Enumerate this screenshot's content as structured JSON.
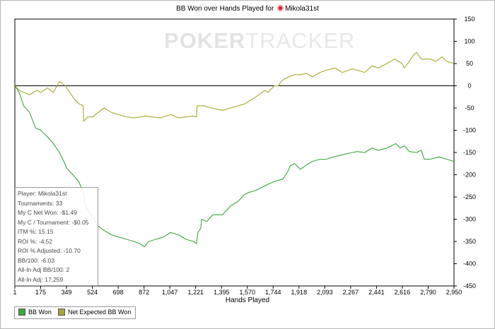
{
  "header": {
    "title_prefix": "BB Won over Hands Played for",
    "player_name": "Mikola31st"
  },
  "watermark": {
    "bold": "POKER",
    "light": "TRACKER"
  },
  "infobox": {
    "lines": [
      "Player: Mikola31st",
      "Tournaments: 33",
      "My C Net Won: -$1.49",
      "My C / Tournament: -$0.05",
      "ITM %: 15.15",
      "ROI %: -4.52",
      "ROI % Adjusted: -10.70",
      "BB/100: -6.03",
      "All-In Adj BB/100: 2",
      "All-In Adj: 17,259"
    ]
  },
  "chart_data": {
    "type": "line",
    "title": "BB Won over Hands Played for Mikola31st",
    "xlabel": "Hands Played",
    "ylabel": "",
    "y_axis_side": "right",
    "xlim": [
      1,
      2950
    ],
    "ylim": [
      -450,
      150
    ],
    "x_ticks": [
      "1",
      "175",
      "349",
      "524",
      "698",
      "872",
      "1,047",
      "1,221",
      "1,395",
      "1,570",
      "1,744",
      "1,918",
      "2,093",
      "2,267",
      "2,441",
      "2,616",
      "2,790",
      "2,950"
    ],
    "y_ticks": [
      150,
      100,
      50,
      0,
      -50,
      -100,
      -150,
      -200,
      -250,
      -300,
      -350,
      -400,
      -450
    ],
    "grid": false,
    "legend_position": "bottom-left",
    "series": [
      {
        "name": "BB Won",
        "color": "#3aa63a",
        "x": [
          1,
          30,
          60,
          100,
          140,
          175,
          220,
          260,
          300,
          330,
          349,
          390,
          430,
          460,
          475,
          495,
          510,
          520,
          535,
          560,
          600,
          650,
          698,
          750,
          800,
          840,
          872,
          900,
          950,
          1000,
          1047,
          1100,
          1150,
          1200,
          1221,
          1230,
          1250,
          1255,
          1290,
          1330,
          1395,
          1450,
          1500,
          1540,
          1570,
          1620,
          1680,
          1744,
          1800,
          1830,
          1850,
          1880,
          1918,
          1960,
          2000,
          2050,
          2093,
          2140,
          2200,
          2267,
          2300,
          2350,
          2400,
          2441,
          2500,
          2560,
          2590,
          2616,
          2650,
          2700,
          2730,
          2750,
          2790,
          2850,
          2900,
          2950
        ],
        "y": [
          0,
          -15,
          -45,
          -60,
          -95,
          -100,
          -115,
          -130,
          -150,
          -170,
          -185,
          -200,
          -215,
          -240,
          -270,
          -280,
          -290,
          -295,
          -300,
          -315,
          -325,
          -335,
          -340,
          -345,
          -350,
          -355,
          -362,
          -350,
          -345,
          -340,
          -330,
          -335,
          -345,
          -350,
          -355,
          -330,
          -320,
          -300,
          -305,
          -290,
          -290,
          -270,
          -260,
          -245,
          -240,
          -235,
          -225,
          -215,
          -210,
          -195,
          -180,
          -175,
          -188,
          -178,
          -170,
          -165,
          -165,
          -160,
          -155,
          -150,
          -148,
          -150,
          -140,
          -145,
          -140,
          -130,
          -140,
          -135,
          -148,
          -150,
          -145,
          -165,
          -165,
          -160,
          -165,
          -170
        ]
      },
      {
        "name": "Net Expected BB Won",
        "color": "#a7a730",
        "x": [
          1,
          30,
          60,
          100,
          150,
          175,
          220,
          260,
          300,
          340,
          349,
          380,
          400,
          430,
          460,
          463,
          490,
          524,
          560,
          600,
          650,
          698,
          750,
          800,
          850,
          872,
          920,
          980,
          1047,
          1100,
          1150,
          1200,
          1221,
          1225,
          1270,
          1320,
          1395,
          1450,
          1500,
          1550,
          1570,
          1620,
          1680,
          1700,
          1744,
          1770,
          1790,
          1810,
          1840,
          1880,
          1918,
          1960,
          2000,
          2050,
          2093,
          2150,
          2200,
          2267,
          2300,
          2350,
          2400,
          2441,
          2500,
          2550,
          2600,
          2616,
          2650,
          2680,
          2700,
          2730,
          2790,
          2830,
          2870,
          2900,
          2950
        ],
        "y": [
          0,
          -10,
          -15,
          -20,
          -10,
          -15,
          -5,
          -15,
          10,
          0,
          -5,
          -20,
          -30,
          -40,
          -45,
          -80,
          -70,
          -70,
          -60,
          -50,
          -60,
          -65,
          -70,
          -72,
          -70,
          -68,
          -70,
          -72,
          -65,
          -72,
          -70,
          -68,
          -70,
          -45,
          -45,
          -50,
          -55,
          -50,
          -45,
          -40,
          -35,
          -25,
          -10,
          -15,
          0,
          0,
          10,
          15,
          20,
          25,
          25,
          28,
          20,
          30,
          35,
          40,
          30,
          38,
          35,
          30,
          45,
          40,
          50,
          60,
          50,
          40,
          55,
          70,
          75,
          60,
          60,
          55,
          65,
          55,
          50
        ]
      }
    ]
  },
  "legend": {
    "items": [
      "BB Won",
      "Net Expected BB Won"
    ]
  }
}
